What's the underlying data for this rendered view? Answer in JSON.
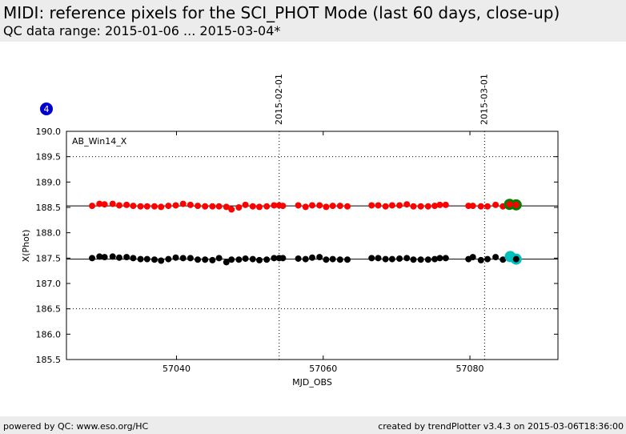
{
  "header": {
    "title": "MIDI: reference pixels for the SCI_PHOT Mode (last 60 days, close-up)",
    "subtitle": "QC data range: 2015-01-06 ... 2015-03-04*"
  },
  "footer": {
    "left": "powered by QC: www.eso.org/HC",
    "right": "created by trendPlotter v3.4.3 on 2015-03-06T18:36:00"
  },
  "plot_badge": "4",
  "colors": {
    "red_series": "#ff0000",
    "black_series": "#000000",
    "latest_red_marker": "#008000",
    "latest_black_marker": "#00bfbf",
    "badge": "#0000cc",
    "header_bg": "#ececec"
  },
  "chart_data": {
    "type": "scatter",
    "title": "",
    "xlabel": "MJD_OBS",
    "ylabel": "X(Phot)",
    "panel_label": "AB_Win14_X",
    "xlim": [
      57025,
      57092
    ],
    "ylim": [
      185.5,
      190.0
    ],
    "xticks": [
      57040,
      57060,
      57080
    ],
    "yticks": [
      190.0,
      189.5,
      189.0,
      188.5,
      188.0,
      187.5,
      187.0,
      186.5,
      186.0,
      185.5
    ],
    "date_markers": [
      {
        "x": 57054.0,
        "label": "2015-02-01"
      },
      {
        "x": 57082.0,
        "label": "2015-03-01"
      }
    ],
    "hlines": [
      188.53,
      187.48
    ],
    "dotted_hlines": [
      189.5,
      186.5
    ],
    "grid": false,
    "series": [
      {
        "color": "red",
        "x": [
          57028.5,
          57029.5,
          57030.2,
          57031.3,
          57032.2,
          57033.2,
          57034.1,
          57035.1,
          57036.0,
          57037.0,
          57037.9,
          57038.9,
          57039.9,
          57040.9,
          57041.9,
          57042.9,
          57043.9,
          57044.9,
          57045.8,
          57046.8,
          57047.5,
          57048.5,
          57049.4,
          57050.4,
          57051.3,
          57052.3,
          57053.3,
          57054.0,
          57054.5,
          57056.6,
          57057.6,
          57058.5,
          57059.5,
          57060.4,
          57061.3,
          57062.3,
          57063.3,
          57066.6,
          57067.5,
          57068.5,
          57069.4,
          57070.4,
          57071.4,
          57072.3,
          57073.3,
          57074.3,
          57075.2,
          57075.9,
          57076.7,
          57079.8,
          57080.4,
          57081.5,
          57082.4,
          57083.5,
          57084.5
        ],
        "y": [
          188.53,
          188.57,
          188.56,
          188.57,
          188.54,
          188.55,
          188.53,
          188.52,
          188.52,
          188.52,
          188.51,
          188.53,
          188.54,
          188.57,
          188.55,
          188.53,
          188.52,
          188.52,
          188.52,
          188.51,
          188.46,
          188.5,
          188.55,
          188.52,
          188.51,
          188.52,
          188.54,
          188.54,
          188.53,
          188.54,
          188.51,
          188.54,
          188.54,
          188.51,
          188.53,
          188.53,
          188.52,
          188.54,
          188.54,
          188.52,
          188.54,
          188.54,
          188.56,
          188.52,
          188.52,
          188.52,
          188.53,
          188.55,
          188.55,
          188.53,
          188.53,
          188.52,
          188.52,
          188.55,
          188.52
        ]
      },
      {
        "color": "black",
        "x": [
          57028.5,
          57029.5,
          57030.2,
          57031.3,
          57032.2,
          57033.2,
          57034.1,
          57035.1,
          57036.0,
          57037.0,
          57037.9,
          57038.9,
          57039.9,
          57040.9,
          57041.9,
          57042.9,
          57043.9,
          57044.9,
          57045.8,
          57046.8,
          57047.5,
          57048.5,
          57049.4,
          57050.4,
          57051.3,
          57052.3,
          57053.3,
          57054.0,
          57054.5,
          57056.6,
          57057.6,
          57058.5,
          57059.5,
          57060.4,
          57061.3,
          57062.3,
          57063.3,
          57066.6,
          57067.5,
          57068.5,
          57069.4,
          57070.4,
          57071.4,
          57072.3,
          57073.3,
          57074.3,
          57075.2,
          57075.9,
          57076.7,
          57079.8,
          57080.4,
          57081.5,
          57082.4,
          57083.5,
          57084.5
        ],
        "y": [
          187.5,
          187.53,
          187.52,
          187.53,
          187.51,
          187.52,
          187.5,
          187.48,
          187.48,
          187.47,
          187.45,
          187.48,
          187.51,
          187.5,
          187.5,
          187.47,
          187.47,
          187.46,
          187.5,
          187.42,
          187.47,
          187.47,
          187.49,
          187.48,
          187.46,
          187.47,
          187.5,
          187.5,
          187.5,
          187.49,
          187.48,
          187.51,
          187.52,
          187.47,
          187.48,
          187.47,
          187.47,
          187.5,
          187.5,
          187.48,
          187.48,
          187.49,
          187.5,
          187.47,
          187.47,
          187.47,
          187.48,
          187.5,
          187.5,
          187.48,
          187.52,
          187.46,
          187.48,
          187.52,
          187.47
        ]
      },
      {
        "color": "green",
        "x": [
          57085.4,
          57086.3
        ],
        "y": [
          188.56,
          188.55
        ]
      },
      {
        "color": "cyan",
        "x": [
          57085.5,
          57086.3
        ],
        "y": [
          187.53,
          187.48
        ]
      }
    ],
    "highlight_inner": [
      {
        "x": 57085.4,
        "y": 188.56,
        "color": "red"
      },
      {
        "x": 57086.3,
        "y": 188.55,
        "color": "red"
      },
      {
        "x": 57086.3,
        "y": 187.48,
        "color": "black"
      }
    ]
  }
}
